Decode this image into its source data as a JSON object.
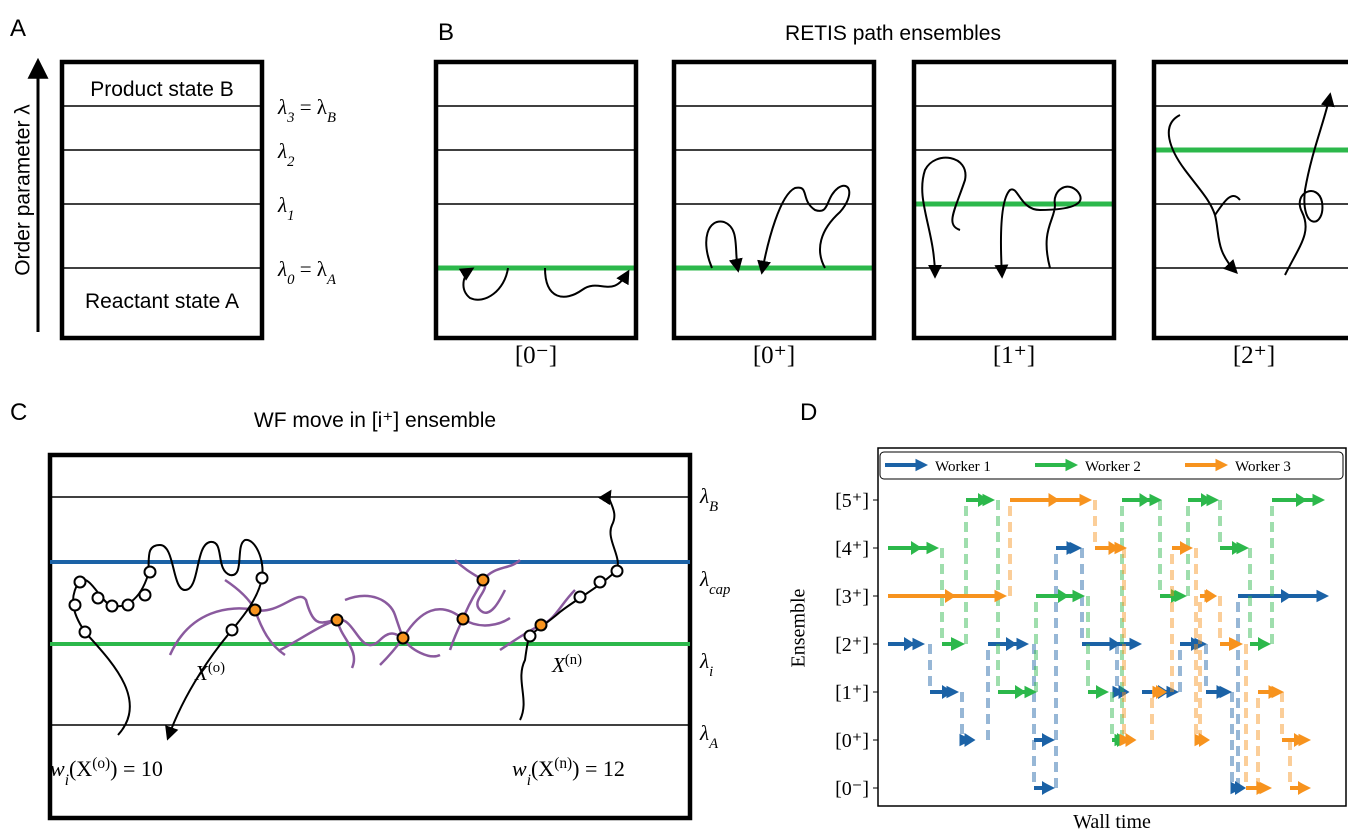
{
  "panel_a": {
    "label": "A",
    "axis_label": "Order parameter λ",
    "product": "Product state B",
    "reactant": "Reactant state A",
    "interfaces": [
      {
        "parts": [
          {
            "t": "λ"
          },
          {
            "sub": "3"
          },
          {
            "t": " = λ"
          },
          {
            "sub": "B"
          }
        ]
      },
      {
        "parts": [
          {
            "t": "λ"
          },
          {
            "sub": "2"
          }
        ]
      },
      {
        "parts": [
          {
            "t": "λ"
          },
          {
            "sub": "1"
          }
        ]
      },
      {
        "parts": [
          {
            "t": "λ"
          },
          {
            "sub": "0"
          },
          {
            "t": " = λ"
          },
          {
            "sub": "A"
          }
        ]
      }
    ]
  },
  "panel_b": {
    "label": "B",
    "title": "RETIS path ensembles",
    "ensembles": [
      "[0⁻]",
      "[0⁺]",
      "[1⁺]",
      "[2⁺]"
    ]
  },
  "panel_c": {
    "label": "C",
    "title": "WF move in [i⁺] ensemble",
    "interfaces": [
      {
        "parts": [
          {
            "t": "λ"
          },
          {
            "sub": "B"
          }
        ]
      },
      {
        "parts": [
          {
            "t": "λ"
          },
          {
            "sub": "cap"
          }
        ]
      },
      {
        "parts": [
          {
            "t": "λ"
          },
          {
            "sub": "i"
          }
        ]
      },
      {
        "parts": [
          {
            "t": "λ"
          },
          {
            "sub": "A"
          }
        ]
      }
    ],
    "old_path": {
      "parts": [
        {
          "t": "X"
        },
        {
          "sup": "(o)"
        }
      ]
    },
    "new_path": {
      "parts": [
        {
          "t": "X"
        },
        {
          "sup": "(n)"
        }
      ]
    },
    "old_weight": {
      "parts": [
        {
          "t": "w"
        },
        {
          "sub": "i"
        },
        {
          "t": "(X"
        },
        {
          "sup": "(o)"
        },
        {
          "t": ") = 10"
        }
      ]
    },
    "new_weight": {
      "parts": [
        {
          "t": "w"
        },
        {
          "sub": "i"
        },
        {
          "t": "(X"
        },
        {
          "sup": "(n)"
        },
        {
          "t": ") = 12"
        }
      ]
    }
  },
  "panel_d": {
    "label": "D",
    "y_label": "Ensemble",
    "x_label": "Wall time",
    "ensembles": [
      "[0⁻]",
      "[0⁺]",
      "[1⁺]",
      "[2⁺]",
      "[3⁺]",
      "[4⁺]",
      "[5⁺]"
    ],
    "workers": [
      {
        "name": "Worker 1",
        "color": "#1b62a6"
      },
      {
        "name": "Worker 2",
        "color": "#2cb84b"
      },
      {
        "name": "Worker 3",
        "color": "#f7931e"
      }
    ]
  }
}
